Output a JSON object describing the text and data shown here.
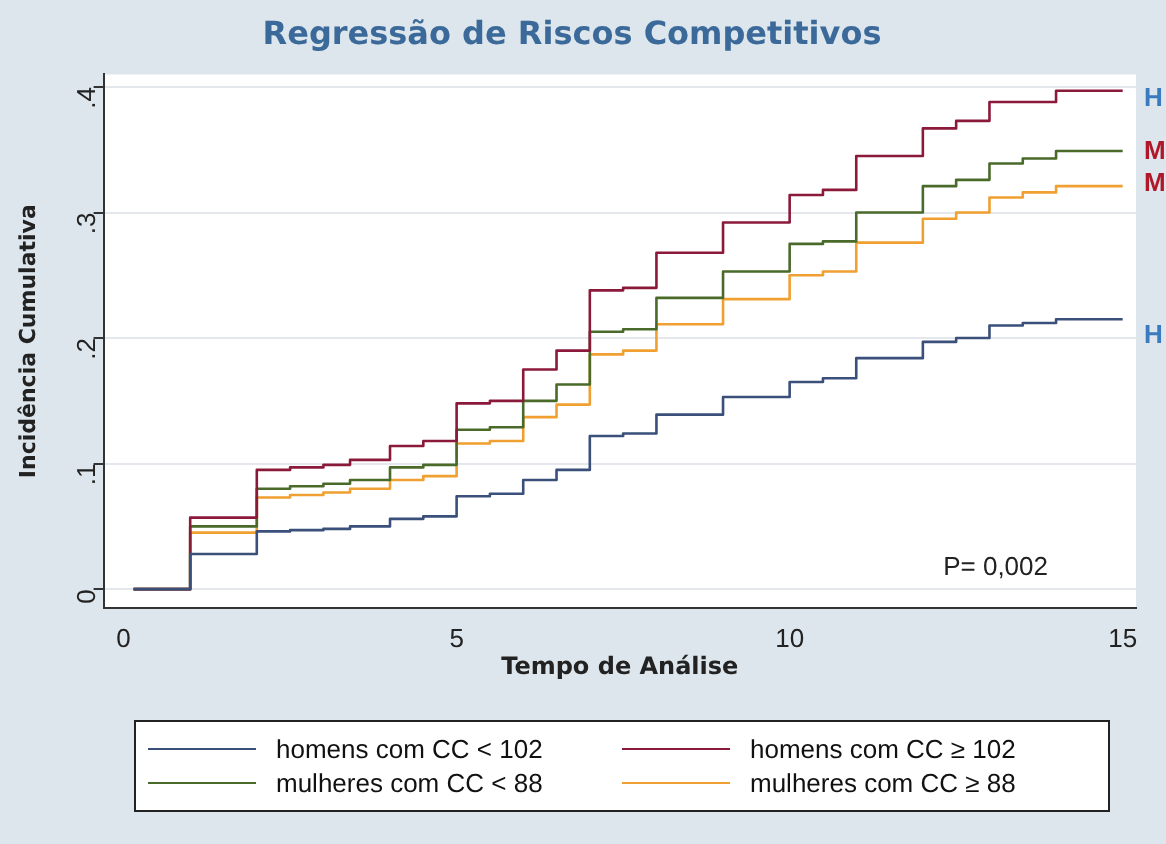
{
  "chart_data": {
    "type": "step",
    "title": "Regressão de Riscos Competitivos",
    "xlabel": "Tempo de Análise",
    "ylabel": "Incidência Cumulativa",
    "x": [
      0.15,
      1,
      2,
      2.5,
      3,
      3.4,
      4,
      4.5,
      5,
      5.5,
      6,
      6.5,
      7,
      7.5,
      8,
      9,
      10,
      10.5,
      11,
      12,
      12.5,
      13,
      13.5,
      14,
      15
    ],
    "series": [
      {
        "name": "homens com CC < 102",
        "color": "#3a4f7a",
        "values": [
          0,
          0.028,
          0.046,
          0.047,
          0.048,
          0.05,
          0.056,
          0.058,
          0.074,
          0.076,
          0.087,
          0.095,
          0.122,
          0.124,
          0.139,
          0.153,
          0.165,
          0.168,
          0.184,
          0.197,
          0.2,
          0.21,
          0.212,
          0.215,
          0.215
        ]
      },
      {
        "name": "homens com CC ≥ 102",
        "color": "#8b1a3a",
        "values": [
          0,
          0.057,
          0.095,
          0.097,
          0.099,
          0.103,
          0.114,
          0.118,
          0.148,
          0.15,
          0.175,
          0.19,
          0.238,
          0.24,
          0.268,
          0.292,
          0.314,
          0.318,
          0.345,
          0.367,
          0.373,
          0.388,
          0.388,
          0.397,
          0.397
        ]
      },
      {
        "name": "mulheres com CC < 88",
        "color": "#4a6a2a",
        "values": [
          0,
          0.05,
          0.08,
          0.082,
          0.084,
          0.087,
          0.097,
          0.099,
          0.127,
          0.129,
          0.15,
          0.163,
          0.205,
          0.207,
          0.232,
          0.253,
          0.275,
          0.277,
          0.3,
          0.321,
          0.326,
          0.339,
          0.343,
          0.349,
          0.349
        ]
      },
      {
        "name": "mulheres com CC ≥ 88",
        "color": "#f0a030",
        "values": [
          0,
          0.045,
          0.073,
          0.075,
          0.077,
          0.08,
          0.087,
          0.09,
          0.116,
          0.118,
          0.137,
          0.147,
          0.187,
          0.19,
          0.211,
          0.231,
          0.25,
          0.253,
          0.276,
          0.295,
          0.3,
          0.312,
          0.316,
          0.321,
          0.321
        ]
      }
    ],
    "xlim": [
      -0.3,
      15.2
    ],
    "xticks": [
      0,
      5,
      10,
      15
    ],
    "ylim": [
      -0.015,
      0.41
    ],
    "yticks": [
      0,
      {
        "value": 0.1,
        "label": ".1"
      },
      {
        "value": 0.2,
        "label": ".2"
      },
      {
        "value": 0.3,
        "label": ".3"
      },
      {
        "value": 0.4,
        "label": ".4"
      }
    ],
    "grid": "y",
    "legend": "bottom",
    "annotations": [
      "P= 0,002",
      "H",
      "M",
      "M",
      "H"
    ]
  }
}
